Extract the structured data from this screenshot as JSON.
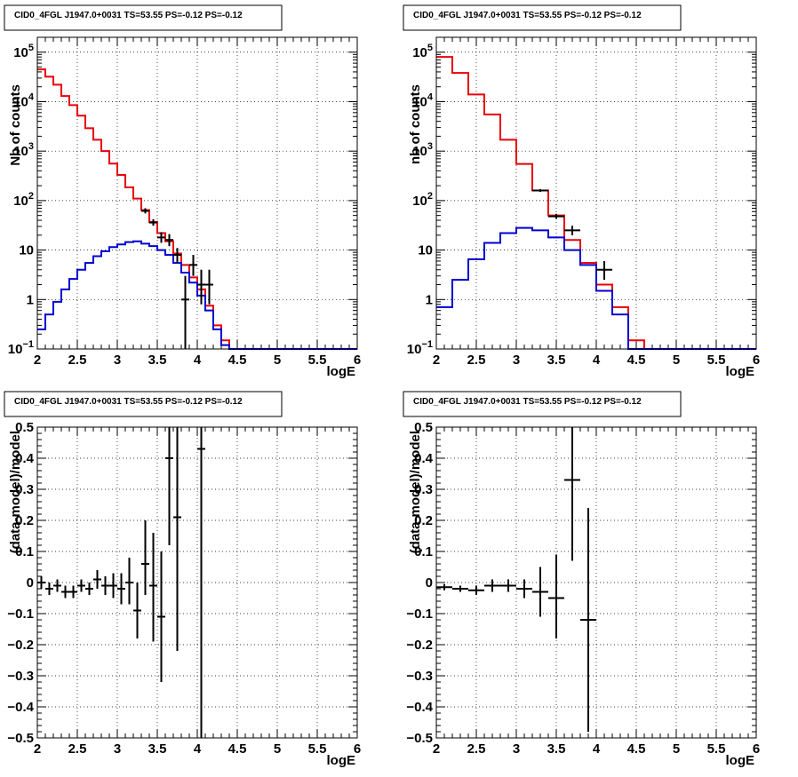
{
  "colors": {
    "data": "#000000",
    "total_model": "#e8000b",
    "source_model": "#0000d0"
  },
  "chart_data": [
    {
      "type": "line",
      "title": "CID0_4FGL J1947.0+0031 TS=53.55 PS=-0.12 PS=-0.12",
      "xlabel": "logE",
      "ylabel": "Nb of counts",
      "xlim": [
        2,
        6
      ],
      "ylim": [
        0.1,
        200000
      ],
      "yscale": "log",
      "grid": true,
      "xticks": [
        "2",
        "2.5",
        "3",
        "3.5",
        "4",
        "4.5",
        "5",
        "5.5",
        "6"
      ],
      "yticks": [
        {
          "v": 0.1,
          "base": "10",
          "exp": "−1"
        },
        {
          "v": 1,
          "base": "1",
          "exp": ""
        },
        {
          "v": 10,
          "base": "10",
          "exp": ""
        },
        {
          "v": 100,
          "base": "10",
          "exp": "2"
        },
        {
          "v": 1000,
          "base": "10",
          "exp": "3"
        },
        {
          "v": 10000,
          "base": "10",
          "exp": "4"
        },
        {
          "v": 100000,
          "base": "10",
          "exp": "5"
        }
      ],
      "bin_width": 0.1,
      "bin_starts": [
        2.0,
        2.1,
        2.2,
        2.3,
        2.4,
        2.5,
        2.6,
        2.7,
        2.8,
        2.9,
        3.0,
        3.1,
        3.2,
        3.3,
        3.4,
        3.5,
        3.6,
        3.7,
        3.8,
        3.9,
        4.0,
        4.1,
        4.2,
        4.3,
        4.4,
        4.5,
        4.6,
        4.7,
        4.8,
        4.9,
        5.0,
        5.1,
        5.2,
        5.3,
        5.4,
        5.5,
        5.6,
        5.7,
        5.8,
        5.9
      ],
      "series": [
        {
          "key": "total_model",
          "values": [
            45000,
            32000,
            22000,
            13000,
            8500,
            5200,
            2900,
            1700,
            1000,
            560,
            330,
            185,
            110,
            64,
            37,
            22,
            15,
            8.5,
            5,
            2.8,
            1.6,
            0.75,
            0.3,
            0.15,
            0.1,
            0.1,
            0.1,
            0.1,
            0.1,
            0.1,
            0.1,
            0.1,
            0.1,
            0.1,
            0.1,
            0.1,
            0.1,
            0.1,
            0.1,
            0.1
          ]
        },
        {
          "key": "source_model",
          "values": [
            0.25,
            0.5,
            0.9,
            1.6,
            2.6,
            4,
            5.5,
            7.5,
            9.5,
            11.5,
            13,
            14.5,
            15,
            13.5,
            12,
            10,
            8,
            5.5,
            3.5,
            2.2,
            1.2,
            0.6,
            0.25,
            0.12,
            0.1,
            0.1,
            0.1,
            0.1,
            0.1,
            0.1,
            0.1,
            0.1,
            0.1,
            0.1,
            0.1,
            0.1,
            0.1,
            0.1,
            0.1,
            0.1
          ]
        }
      ],
      "points": [
        {
          "x": 3.35,
          "y": 62,
          "lo": 55,
          "hi": 70
        },
        {
          "x": 3.45,
          "y": 36,
          "lo": 31,
          "hi": 42
        },
        {
          "x": 3.55,
          "y": 18,
          "lo": 14,
          "hi": 23
        },
        {
          "x": 3.65,
          "y": 16,
          "lo": 12,
          "hi": 21
        },
        {
          "x": 3.75,
          "y": 8,
          "lo": 5.5,
          "hi": 11
        },
        {
          "x": 3.85,
          "y": 1,
          "lo": 0.1,
          "hi": 3
        },
        {
          "x": 3.95,
          "y": 5,
          "lo": 3,
          "hi": 8
        },
        {
          "x": 4.05,
          "y": 2,
          "lo": 0.8,
          "hi": 4
        },
        {
          "x": 4.15,
          "y": 2,
          "lo": 0.8,
          "hi": 4
        }
      ]
    },
    {
      "type": "line",
      "title": "CID0_4FGL J1947.0+0031 TS=53.55 PS=-0.12 PS=-0.12",
      "xlabel": "logE",
      "ylabel": "nb of counts",
      "xlim": [
        2,
        6
      ],
      "ylim": [
        0.1,
        200000
      ],
      "yscale": "log",
      "grid": true,
      "xticks": [
        "2",
        "2.5",
        "3",
        "3.5",
        "4",
        "4.5",
        "5",
        "5.5",
        "6"
      ],
      "yticks": [
        {
          "v": 0.1,
          "base": "10",
          "exp": "−1"
        },
        {
          "v": 1,
          "base": "1",
          "exp": ""
        },
        {
          "v": 10,
          "base": "10",
          "exp": ""
        },
        {
          "v": 100,
          "base": "10",
          "exp": "2"
        },
        {
          "v": 1000,
          "base": "10",
          "exp": "3"
        },
        {
          "v": 10000,
          "base": "10",
          "exp": "4"
        },
        {
          "v": 100000,
          "base": "10",
          "exp": "5"
        }
      ],
      "bin_width": 0.2,
      "bin_starts": [
        2.0,
        2.2,
        2.4,
        2.6,
        2.8,
        3.0,
        3.2,
        3.4,
        3.6,
        3.8,
        4.0,
        4.2,
        4.4,
        4.6,
        4.8,
        5.0,
        5.2,
        5.4,
        5.6,
        5.8
      ],
      "series": [
        {
          "key": "total_model",
          "values": [
            80000,
            38000,
            14000,
            5500,
            1700,
            550,
            160,
            50,
            16,
            5.5,
            2,
            0.7,
            0.15,
            0.1,
            0.1,
            0.1,
            0.1,
            0.1,
            0.1,
            0.1
          ]
        },
        {
          "key": "source_model",
          "values": [
            0.7,
            2.5,
            6.5,
            14,
            22,
            28,
            25,
            18,
            10,
            5,
            1.5,
            0.5,
            0.1,
            0.1,
            0.1,
            0.1,
            0.1,
            0.1,
            0.1,
            0.1
          ]
        }
      ],
      "points": [
        {
          "x": 3.3,
          "y": 160,
          "lo": 150,
          "hi": 170
        },
        {
          "x": 3.5,
          "y": 48,
          "lo": 43,
          "hi": 54
        },
        {
          "x": 3.7,
          "y": 25,
          "lo": 20,
          "hi": 31
        },
        {
          "x": 4.1,
          "y": 4,
          "lo": 2.5,
          "hi": 6
        }
      ]
    },
    {
      "type": "scatter",
      "title": "CID0_4FGL J1947.0+0031 TS=53.55 PS=-0.12 PS=-0.12",
      "xlabel": "logE",
      "ylabel": "(data-model)/model",
      "xlim": [
        2,
        6
      ],
      "ylim": [
        -0.5,
        0.5
      ],
      "yscale": "linear",
      "grid": true,
      "xticks": [
        "2",
        "2.5",
        "3",
        "3.5",
        "4",
        "4.5",
        "5",
        "5.5",
        "6"
      ],
      "yticks": [
        "−0.5",
        "−0.4",
        "−0.3",
        "−0.2",
        "−0.1",
        "0",
        "0.1",
        "0.2",
        "0.3",
        "0.4",
        "0.5"
      ],
      "bin_width": 0.1,
      "points": [
        {
          "x": 2.05,
          "y": 0.0,
          "lo": -0.02,
          "hi": 0.02
        },
        {
          "x": 2.15,
          "y": -0.02,
          "lo": -0.04,
          "hi": 0.0
        },
        {
          "x": 2.25,
          "y": -0.01,
          "lo": -0.03,
          "hi": 0.01
        },
        {
          "x": 2.35,
          "y": -0.03,
          "lo": -0.05,
          "hi": -0.01
        },
        {
          "x": 2.45,
          "y": -0.03,
          "lo": -0.05,
          "hi": -0.01
        },
        {
          "x": 2.55,
          "y": -0.01,
          "lo": -0.03,
          "hi": 0.01
        },
        {
          "x": 2.65,
          "y": -0.02,
          "lo": -0.04,
          "hi": 0.0
        },
        {
          "x": 2.75,
          "y": 0.01,
          "lo": -0.02,
          "hi": 0.04
        },
        {
          "x": 2.85,
          "y": -0.01,
          "lo": -0.04,
          "hi": 0.02
        },
        {
          "x": 2.95,
          "y": -0.01,
          "lo": -0.05,
          "hi": 0.03
        },
        {
          "x": 3.05,
          "y": -0.02,
          "lo": -0.07,
          "hi": 0.03
        },
        {
          "x": 3.15,
          "y": 0.0,
          "lo": -0.07,
          "hi": 0.08
        },
        {
          "x": 3.25,
          "y": -0.09,
          "lo": -0.18,
          "hi": 0.0
        },
        {
          "x": 3.35,
          "y": 0.06,
          "lo": -0.04,
          "hi": 0.2
        },
        {
          "x": 3.45,
          "y": -0.01,
          "lo": -0.19,
          "hi": 0.16
        },
        {
          "x": 3.55,
          "y": -0.11,
          "lo": -0.32,
          "hi": 0.1
        },
        {
          "x": 3.65,
          "y": 0.4,
          "lo": 0.12,
          "hi": 0.5
        },
        {
          "x": 3.75,
          "y": 0.21,
          "lo": -0.22,
          "hi": 0.5
        },
        {
          "x": 4.05,
          "y": 0.43,
          "lo": -0.5,
          "hi": 0.5
        }
      ]
    },
    {
      "type": "scatter",
      "title": "CID0_4FGL J1947.0+0031 TS=53.55 PS=-0.12 PS=-0.12",
      "xlabel": "logE",
      "ylabel": "(data-model)/model",
      "xlim": [
        2,
        6
      ],
      "ylim": [
        -0.5,
        0.5
      ],
      "yscale": "linear",
      "grid": true,
      "xticks": [
        "2",
        "2.5",
        "3",
        "3.5",
        "4",
        "4.5",
        "5",
        "5.5",
        "6"
      ],
      "yticks": [
        "−0.5",
        "−0.4",
        "−0.3",
        "−0.2",
        "−0.1",
        "0",
        "0.1",
        "0.2",
        "0.3",
        "0.4",
        "0.5"
      ],
      "bin_width": 0.2,
      "points": [
        {
          "x": 2.1,
          "y": -0.015,
          "lo": -0.025,
          "hi": -0.005
        },
        {
          "x": 2.3,
          "y": -0.02,
          "lo": -0.03,
          "hi": -0.01
        },
        {
          "x": 2.5,
          "y": -0.025,
          "lo": -0.04,
          "hi": -0.01
        },
        {
          "x": 2.7,
          "y": -0.01,
          "lo": -0.03,
          "hi": 0.01
        },
        {
          "x": 2.9,
          "y": -0.01,
          "lo": -0.03,
          "hi": 0.01
        },
        {
          "x": 3.1,
          "y": -0.02,
          "lo": -0.05,
          "hi": 0.01
        },
        {
          "x": 3.3,
          "y": -0.03,
          "lo": -0.11,
          "hi": 0.05
        },
        {
          "x": 3.5,
          "y": -0.05,
          "lo": -0.18,
          "hi": 0.09
        },
        {
          "x": 3.7,
          "y": 0.33,
          "lo": 0.07,
          "hi": 0.5
        },
        {
          "x": 3.9,
          "y": -0.12,
          "lo": -0.48,
          "hi": 0.24
        }
      ]
    }
  ]
}
